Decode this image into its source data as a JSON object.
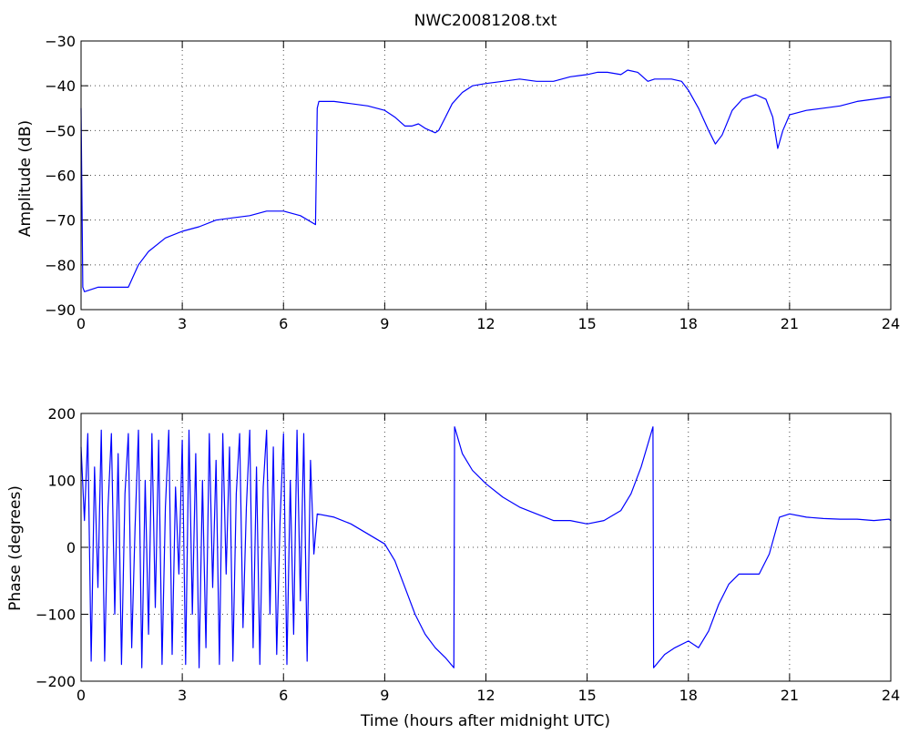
{
  "chart_data": [
    {
      "type": "line",
      "title": "NWC20081208.txt",
      "xlabel": "",
      "ylabel": "Amplitude (dB)",
      "xlim": [
        0,
        24
      ],
      "ylim": [
        -90,
        -30
      ],
      "x_ticks": [
        0,
        3,
        6,
        9,
        12,
        15,
        18,
        21,
        24
      ],
      "y_ticks": [
        -30,
        -40,
        -50,
        -60,
        -70,
        -80,
        -90
      ],
      "grid": true,
      "line_color": "#0000ff",
      "series": [
        {
          "x": [
            0,
            0.05,
            0.1,
            0.5,
            1.0,
            1.4,
            1.7,
            2.0,
            2.5,
            3.0,
            3.5,
            4.0,
            4.5,
            5.0,
            5.5,
            6.0,
            6.5,
            6.95,
            7.0,
            7.05,
            7.5,
            8.0,
            8.5,
            9.0,
            9.3,
            9.6,
            9.8,
            10.0,
            10.2,
            10.5,
            10.6,
            10.8,
            11.0,
            11.3,
            11.6,
            12.0,
            12.5,
            13.0,
            13.5,
            14.0,
            14.5,
            15.0,
            15.3,
            15.6,
            16.0,
            16.2,
            16.5,
            16.8,
            17.0,
            17.5,
            17.8,
            18.0,
            18.3,
            18.6,
            18.8,
            19.0,
            19.3,
            19.6,
            20.0,
            20.3,
            20.5,
            20.65,
            20.8,
            21.0,
            21.5,
            22.0,
            22.5,
            23.0,
            23.5,
            23.95,
            24.0
          ],
          "y": [
            -45,
            -85,
            -86,
            -85,
            -85,
            -85,
            -80,
            -77,
            -74,
            -72.5,
            -71.5,
            -70,
            -69.5,
            -69,
            -68,
            -68,
            -69,
            -71,
            -45,
            -43.5,
            -43.5,
            -44,
            -44.5,
            -45.5,
            -47,
            -49,
            -49,
            -48.5,
            -49.5,
            -50.5,
            -50,
            -47,
            -44,
            -41.5,
            -40,
            -39.5,
            -39,
            -38.5,
            -39,
            -39,
            -38,
            -37.5,
            -37,
            -37,
            -37.5,
            -36.5,
            -37,
            -39,
            -38.5,
            -38.5,
            -39,
            -41,
            -45,
            -50,
            -53,
            -51,
            -45.5,
            -43,
            -42,
            -43,
            -47,
            -54,
            -50,
            -46.5,
            -45.5,
            -45,
            -44.5,
            -43.5,
            -43,
            -42.5,
            -42.5
          ]
        }
      ]
    },
    {
      "type": "line",
      "title": "",
      "xlabel": "Time (hours after midnight UTC)",
      "ylabel": "Phase (degrees)",
      "xlim": [
        0,
        24
      ],
      "ylim": [
        -200,
        200
      ],
      "x_ticks": [
        0,
        3,
        6,
        9,
        12,
        15,
        18,
        21,
        24
      ],
      "y_ticks": [
        200,
        100,
        0,
        -100,
        -200
      ],
      "grid": true,
      "line_color": "#0000ff",
      "series": [
        {
          "x": [
            0,
            0.1,
            0.2,
            0.3,
            0.4,
            0.5,
            0.6,
            0.7,
            0.8,
            0.9,
            1.0,
            1.1,
            1.2,
            1.3,
            1.4,
            1.5,
            1.6,
            1.7,
            1.8,
            1.9,
            2.0,
            2.1,
            2.2,
            2.3,
            2.4,
            2.5,
            2.6,
            2.7,
            2.8,
            2.9,
            3.0,
            3.1,
            3.2,
            3.3,
            3.4,
            3.5,
            3.6,
            3.7,
            3.8,
            3.9,
            4.0,
            4.1,
            4.2,
            4.3,
            4.4,
            4.5,
            4.6,
            4.7,
            4.8,
            4.9,
            5.0,
            5.1,
            5.2,
            5.3,
            5.4,
            5.5,
            5.6,
            5.7,
            5.8,
            5.9,
            6.0,
            6.1,
            6.2,
            6.3,
            6.4,
            6.5,
            6.6,
            6.7,
            6.8,
            6.9,
            7.0,
            7.5,
            8.0,
            8.5,
            9.0,
            9.3,
            9.6,
            9.9,
            10.2,
            10.5,
            10.8,
            11.05,
            11.07,
            11.3,
            11.6,
            12.0,
            12.5,
            13.0,
            13.5,
            14.0,
            14.5,
            15.0,
            15.5,
            16.0,
            16.3,
            16.6,
            16.95,
            16.97,
            17.3,
            17.6,
            18.0,
            18.3,
            18.6,
            18.9,
            19.2,
            19.5,
            19.8,
            20.1,
            20.4,
            20.7,
            21.0,
            21.5,
            22.0,
            22.5,
            23.0,
            23.5,
            23.95,
            24.0
          ],
          "y": [
            150,
            40,
            170,
            -170,
            120,
            -60,
            175,
            -170,
            60,
            170,
            -100,
            140,
            -175,
            80,
            170,
            -150,
            30,
            175,
            -180,
            100,
            -130,
            170,
            -90,
            160,
            -175,
            60,
            175,
            -160,
            90,
            -40,
            160,
            -175,
            175,
            -100,
            140,
            -180,
            100,
            -150,
            170,
            -60,
            130,
            -175,
            170,
            -40,
            150,
            -170,
            80,
            170,
            -120,
            60,
            175,
            -150,
            120,
            -175,
            90,
            175,
            -100,
            150,
            -160,
            40,
            170,
            -175,
            100,
            -130,
            175,
            -80,
            170,
            -170,
            130,
            -10,
            50,
            45,
            35,
            20,
            5,
            -20,
            -60,
            -100,
            -130,
            -150,
            -165,
            -180,
            180,
            140,
            115,
            95,
            75,
            60,
            50,
            40,
            40,
            35,
            40,
            55,
            80,
            120,
            180,
            -180,
            -160,
            -150,
            -140,
            -150,
            -125,
            -85,
            -55,
            -40,
            -40,
            -40,
            -10,
            45,
            50,
            45,
            43,
            42,
            42,
            40,
            42,
            40
          ]
        }
      ]
    }
  ]
}
